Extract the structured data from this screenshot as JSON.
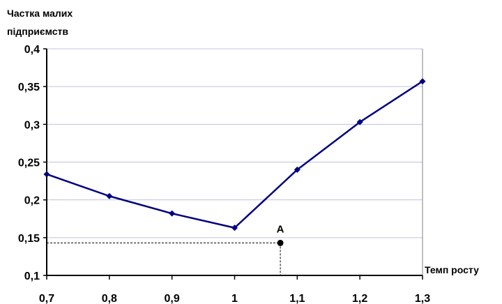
{
  "chart_data": {
    "type": "line",
    "ylabel_lines": [
      "Частка малих",
      "підприємств"
    ],
    "xlabel": "Темп росту",
    "xlim": [
      0.7,
      1.3
    ],
    "ylim": [
      0.1,
      0.4
    ],
    "x_ticks": [
      0.7,
      0.8,
      0.9,
      1,
      1.1,
      1.2,
      1.3
    ],
    "x_tick_labels": [
      "0,7",
      "0,8",
      "0,9",
      "1",
      "1,1",
      "1,2",
      "1,3"
    ],
    "y_ticks": [
      0.1,
      0.15,
      0.2,
      0.25,
      0.3,
      0.35,
      0.4
    ],
    "y_tick_labels": [
      "0,1",
      "0,15",
      "0,2",
      "0,25",
      "0,3",
      "0,35",
      "0,4"
    ],
    "grid": "horizontal",
    "series": [
      {
        "x": [
          0.7,
          0.8,
          0.9,
          1.0,
          1.1,
          1.2,
          1.3
        ],
        "y": [
          0.234,
          0.205,
          0.182,
          0.163,
          0.24,
          0.303,
          0.357
        ],
        "color": "#000080",
        "marker": "diamond"
      }
    ],
    "annotations": [
      {
        "label": "A",
        "x": 1.073,
        "y": 0.143,
        "dropline": true
      }
    ],
    "colors": {
      "line": "#000080",
      "grid": "#C0C0E0",
      "axis": "#000000",
      "point": "#000000"
    }
  }
}
